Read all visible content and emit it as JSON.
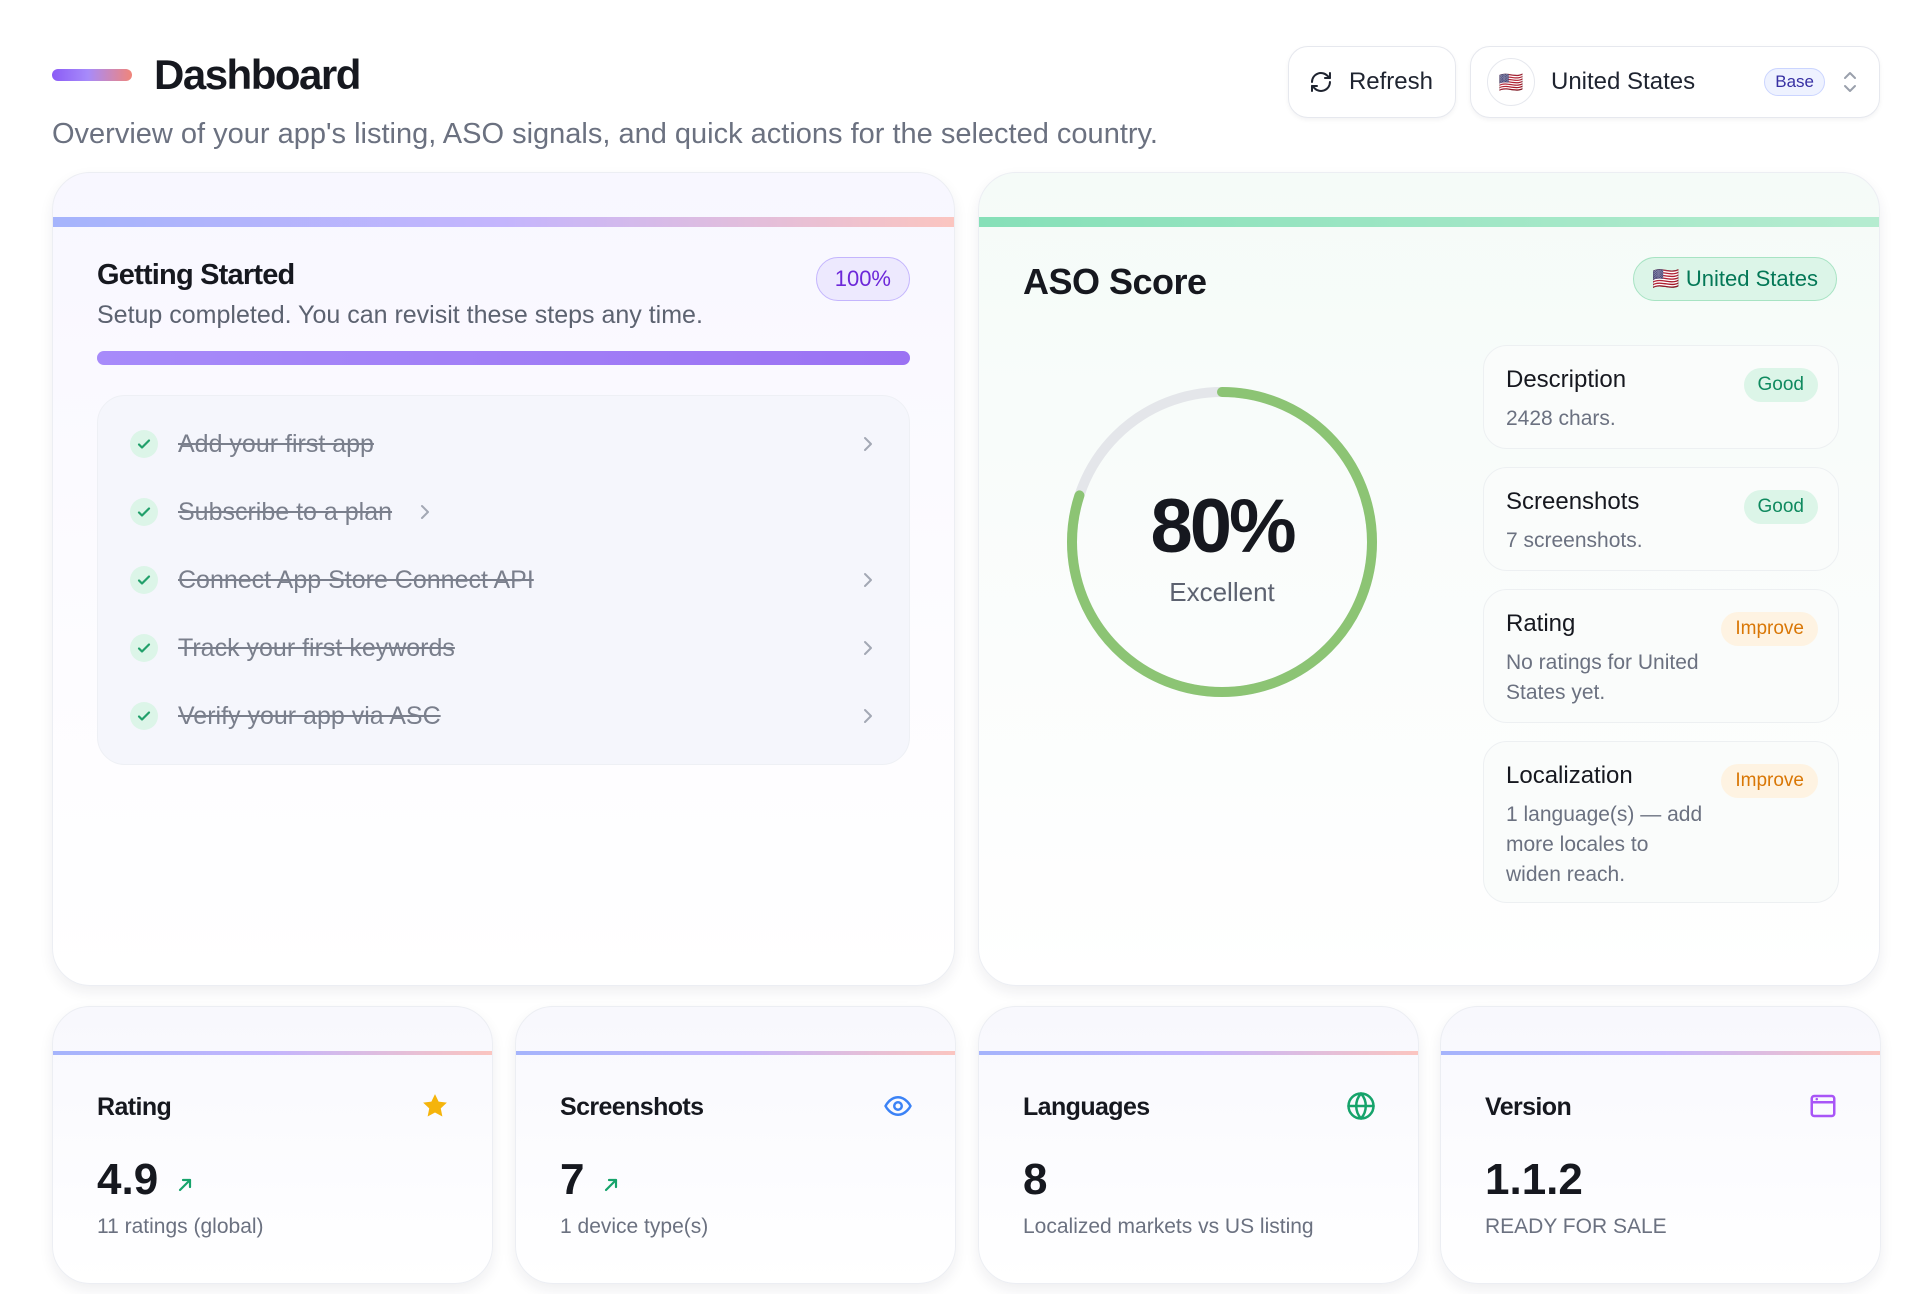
{
  "header": {
    "title": "Dashboard",
    "subtitle": "Overview of your app's listing, ASO signals, and quick actions for the selected country.",
    "refresh_label": "Refresh",
    "country": {
      "flag": "🇺🇸",
      "name": "United States",
      "badge": "Base"
    }
  },
  "getting_started": {
    "title": "Getting Started",
    "subtitle": "Setup completed. You can revisit these steps any time.",
    "percent_label": "100%",
    "progress": 1.0,
    "steps": [
      {
        "label": "Add your first app",
        "done": true
      },
      {
        "label": "Subscribe to a plan",
        "done": true
      },
      {
        "label": "Connect App Store Connect API",
        "done": true
      },
      {
        "label": "Track your first keywords",
        "done": true
      },
      {
        "label": "Verify your app via ASC",
        "done": true
      }
    ]
  },
  "aso": {
    "title": "ASO Score",
    "country_badge": "🇺🇸 United States",
    "score": 80,
    "score_label": "80%",
    "rating_text": "Excellent",
    "metrics": [
      {
        "name": "Description",
        "status": "Good",
        "detail": "2428 chars."
      },
      {
        "name": "Screenshots",
        "status": "Good",
        "detail": "7 screenshots."
      },
      {
        "name": "Rating",
        "status": "Improve",
        "detail": "No ratings for United States yet."
      },
      {
        "name": "Localization",
        "status": "Improve",
        "detail": "1 language(s) — add more locales to widen reach."
      }
    ]
  },
  "stats": [
    {
      "label": "Rating",
      "icon": "star-icon",
      "value": "4.9",
      "sub": "11 ratings (global)"
    },
    {
      "label": "Screenshots",
      "icon": "eye-icon",
      "value": "7",
      "sub": "1 device type(s)"
    },
    {
      "label": "Languages",
      "icon": "globe-icon",
      "value": "8",
      "sub": "Localized markets vs US listing"
    },
    {
      "label": "Version",
      "icon": "browser-window-icon",
      "value": "1.1.2",
      "sub": "READY FOR SALE"
    }
  ],
  "colors": {
    "accent_purple": "#8b5cf6",
    "good_green": "#0f8a5f",
    "improve_orange": "#d97706",
    "gauge_green": "#8cc474"
  }
}
